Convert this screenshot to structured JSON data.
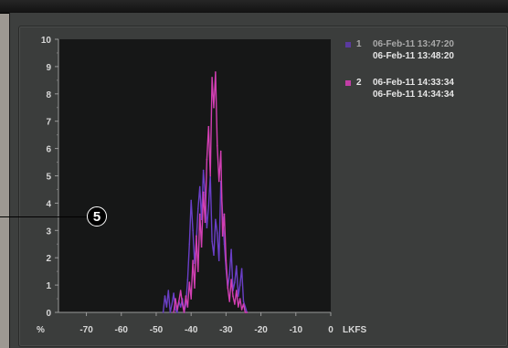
{
  "chart_data": {
    "type": "line",
    "y_unit": "%",
    "x_unit": "LKFS",
    "x_ticks": [
      "-70",
      "-60",
      "-50",
      "-40",
      "-30",
      "-20",
      "-10",
      "0"
    ],
    "y_ticks": [
      "10",
      "9",
      "8",
      "7",
      "6",
      "5",
      "4",
      "3",
      "2",
      "1",
      "0"
    ],
    "xlim": [
      -78,
      0
    ],
    "ylim": [
      0,
      10
    ],
    "grid": false,
    "legend_position": "right",
    "series": [
      {
        "color": "#6a3fc7",
        "x": [
          -48,
          -47.5,
          -47,
          -46.5,
          -46,
          -45.5,
          -45,
          -44.5,
          -44,
          -43.5,
          -43,
          -42.5,
          -42,
          -41.5,
          -41,
          -40.5,
          -40,
          -39.5,
          -39,
          -38.5,
          -38,
          -37.5,
          -37,
          -36.5,
          -36,
          -35.5,
          -35,
          -34.5,
          -34,
          -33.5,
          -33,
          -32.5,
          -32,
          -31.5,
          -31,
          -30.5,
          -30,
          -29.5,
          -29,
          -28.5,
          -28,
          -27.5,
          -27,
          -26.5,
          -26,
          -25.5,
          -25,
          -24.5,
          -24
        ],
        "y": [
          0,
          0.6,
          0.2,
          0.8,
          0,
          0.3,
          0.7,
          0.1,
          0,
          0.4,
          0.2,
          0.5,
          0,
          0.3,
          1.2,
          2.5,
          4.1,
          3.0,
          1.8,
          2.6,
          3.8,
          4.6,
          3.4,
          5.2,
          4.3,
          3.1,
          3.9,
          5.0,
          2.6,
          2.1,
          3.4,
          2.9,
          1.9,
          4.8,
          3.6,
          2.5,
          1.6,
          0.9,
          1.4,
          2.3,
          0.8,
          1.1,
          1.7,
          0.6,
          1.0,
          1.6,
          0.4,
          0.2,
          0
        ]
      },
      {
        "color": "#d23fb3",
        "x": [
          -45,
          -44.5,
          -44,
          -43.5,
          -43,
          -42.5,
          -42,
          -41.5,
          -41,
          -40.5,
          -40,
          -39.5,
          -39,
          -38.5,
          -38,
          -37.5,
          -37,
          -36.5,
          -36,
          -35.5,
          -35,
          -34.5,
          -34,
          -33.5,
          -33,
          -32.5,
          -32,
          -31.5,
          -31,
          -30.5,
          -30,
          -29.5,
          -29,
          -28.5,
          -28,
          -27.5,
          -27,
          -26.5,
          -26,
          -25.5,
          -25,
          -24.5,
          -24
        ],
        "y": [
          0,
          0.5,
          0.1,
          0.4,
          0.8,
          0.3,
          0,
          0.6,
          0.2,
          1.1,
          0.5,
          1.9,
          0.9,
          2.8,
          1.5,
          3.6,
          2.4,
          4.4,
          3.3,
          5.6,
          6.8,
          5.0,
          8.6,
          7.5,
          8.8,
          6.1,
          4.8,
          5.9,
          2.8,
          3.6,
          1.9,
          0.9,
          0.4,
          1.2,
          0.6,
          0.3,
          0.8,
          0.2,
          0.5,
          0.1,
          0.3,
          0,
          0
        ]
      }
    ]
  },
  "legend": [
    {
      "number": "1",
      "color": "#5a3a9e",
      "line1": "06-Feb-11 13:47:20",
      "line2": "06-Feb-11 13:48:20"
    },
    {
      "number": "2",
      "color": "#c23ea6",
      "line1": "06-Feb-11 14:33:34",
      "line2": "06-Feb-11 14:34:34"
    }
  ],
  "callout": {
    "label": "5"
  }
}
